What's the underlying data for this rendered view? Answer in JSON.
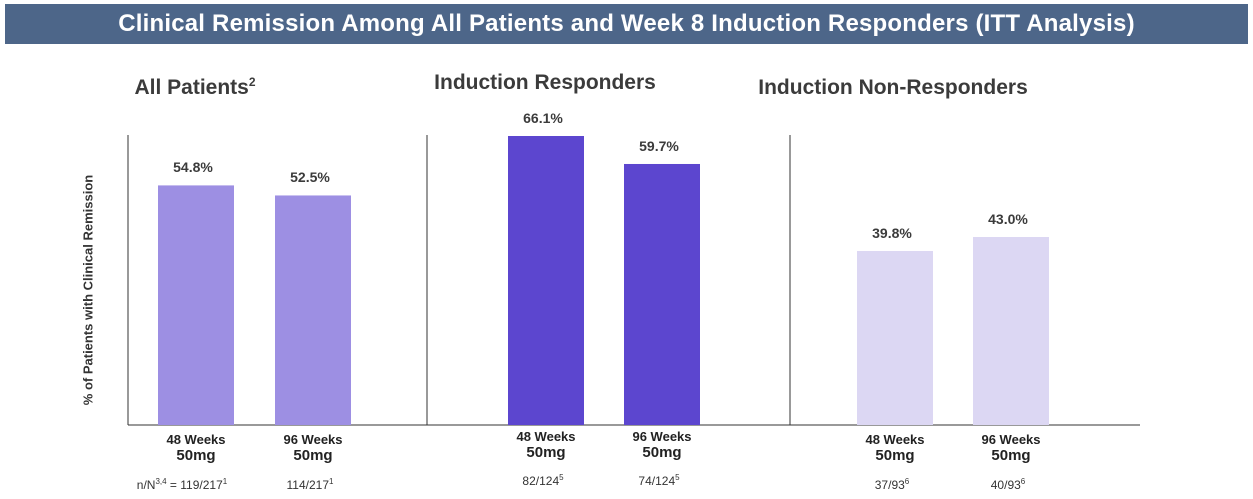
{
  "title": "Clinical Remission Among All Patients and Week 8 Induction Responders (ITT Analysis)",
  "colors": {
    "header_bg": "#4d6689",
    "all_patients": "#9d8fe3",
    "responders": "#5c46cf",
    "non_responders": "#dcd7f3"
  },
  "chart_data": {
    "type": "bar",
    "title": "Clinical Remission Among All Patients and Week 8 Induction Responders (ITT Analysis)",
    "ylabel": "% of Patients with Clinical Remission",
    "ylim": [
      0,
      70
    ],
    "grid": false,
    "panels": [
      {
        "name": "All Patients",
        "name_sup": "2",
        "bars": [
          {
            "line1": "48 Weeks",
            "line2": "50mg",
            "value": 54.8,
            "label": "54.8%",
            "note": "n/N",
            "note_sup": "3,4",
            "note_mid": " = 119/217",
            "note_sup2": "1"
          },
          {
            "line1": "96 Weeks",
            "line2": "50mg",
            "value": 52.5,
            "label": "52.5%",
            "note": "114/217",
            "note_sup": "1"
          }
        ]
      },
      {
        "name": "Induction Responders",
        "name_sup": "",
        "bars": [
          {
            "line1": "48 Weeks",
            "line2": "50mg",
            "value": 66.1,
            "label": "66.1%",
            "note": "82/124",
            "note_sup": "5"
          },
          {
            "line1": "96 Weeks",
            "line2": "50mg",
            "value": 59.7,
            "label": "59.7%",
            "note": "74/124",
            "note_sup": "5"
          }
        ]
      },
      {
        "name": "Induction Non-Responders",
        "name_sup": "",
        "bars": [
          {
            "line1": "48 Weeks",
            "line2": "50mg",
            "value": 39.8,
            "label": "39.8%",
            "note": "37/93",
            "note_sup": "6"
          },
          {
            "line1": "96 Weeks",
            "line2": "50mg",
            "value": 43.0,
            "label": "43.0%",
            "note": "40/93",
            "note_sup": "6"
          }
        ]
      }
    ]
  }
}
